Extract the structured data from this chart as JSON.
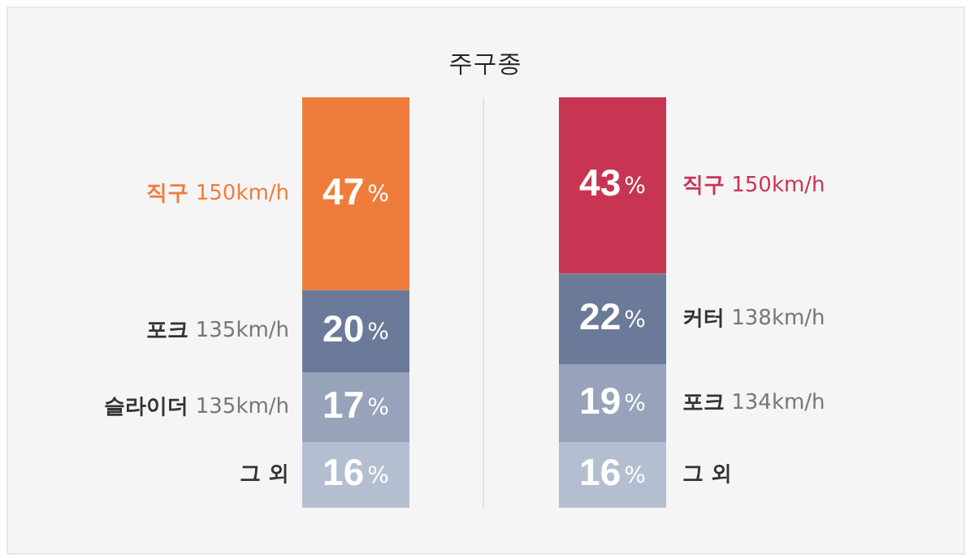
{
  "chart_data": {
    "type": "bar",
    "title": "주구종",
    "stacked": true,
    "categories": [
      null,
      null
    ],
    "series": [
      {
        "name": "그 외",
        "color": "#b4bed1",
        "values": [
          16,
          null
        ],
        "value_labels": [
          "16%",
          null
        ]
      },
      {
        "name": "슬라이더 135km/h",
        "color": "#97a3bb",
        "values": [
          17,
          null
        ],
        "value_labels": [
          "17%",
          null
        ]
      },
      {
        "name": "포크 135km/h",
        "color": "#6b7a99",
        "values": [
          20,
          null
        ],
        "value_labels": [
          "20%",
          null
        ]
      },
      {
        "name": "직구 150km/h",
        "color": "#ee7d3b",
        "values": [
          47,
          null
        ],
        "value_labels": [
          "47%",
          null
        ]
      },
      {
        "name": "그 외",
        "color": "#b4bed1",
        "values": [
          null,
          16
        ],
        "value_labels": [
          null,
          "16%"
        ]
      },
      {
        "name": "포크 134km/h",
        "color": "#97a3bb",
        "values": [
          null,
          19
        ],
        "value_labels": [
          null,
          "19%"
        ]
      },
      {
        "name": "커터 138km/h",
        "color": "#6b7a99",
        "values": [
          null,
          22
        ],
        "value_labels": [
          null,
          "22%"
        ]
      },
      {
        "name": "직구 150km/h",
        "color": "#c83552",
        "values": [
          null,
          43
        ],
        "value_labels": [
          null,
          "43%"
        ]
      }
    ]
  }
}
